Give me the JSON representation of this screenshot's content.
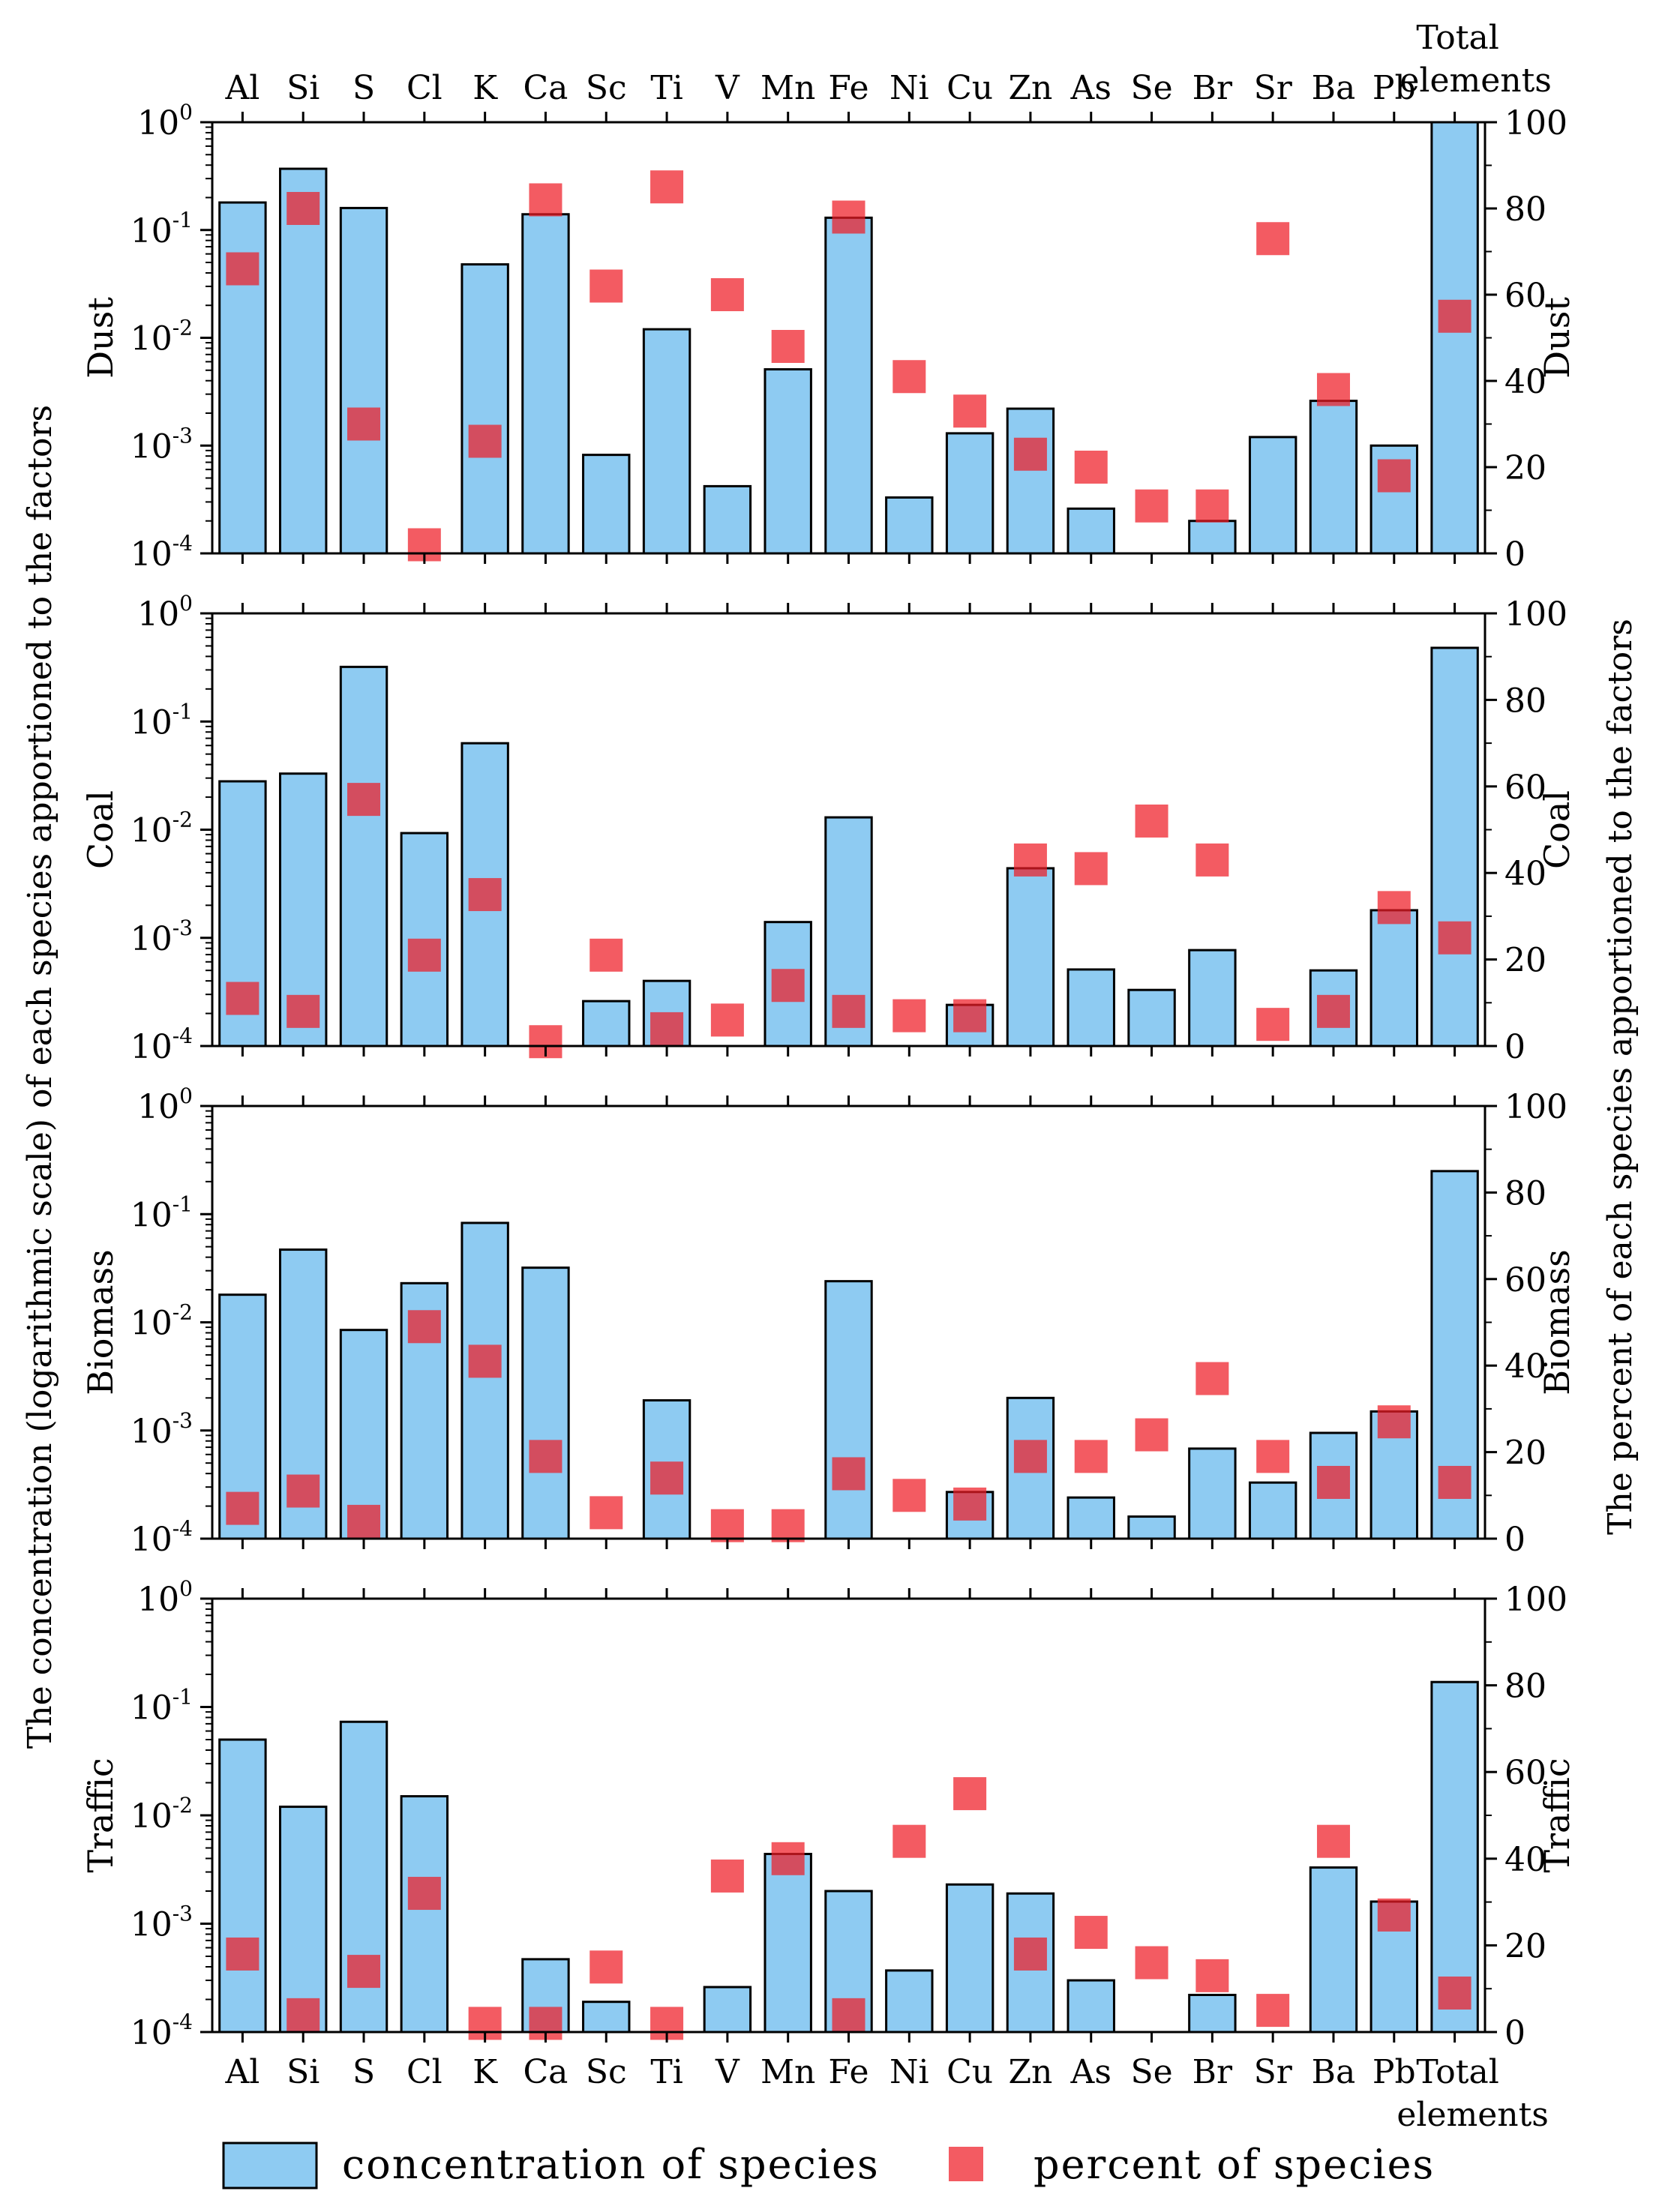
{
  "chart_data": {
    "type": "bar",
    "categories": [
      "Al",
      "Si",
      "S",
      "Cl",
      "K",
      "Ca",
      "Sc",
      "Ti",
      "V",
      "Mn",
      "Fe",
      "Ni",
      "Cu",
      "Zn",
      "As",
      "Se",
      "Br",
      "Sr",
      "Ba",
      "Pb",
      "Total elements"
    ],
    "category_labels": [
      "Al",
      "Si",
      "S",
      "Cl",
      "K",
      "Ca",
      "Sc",
      "Ti",
      "V",
      "Mn",
      "Fe",
      "Ni",
      "Cu",
      "Zn",
      "As",
      "Se",
      "Br",
      "Sr",
      "Ba",
      "Pb"
    ],
    "total_label": [
      "Total",
      "elements"
    ],
    "ylabel_left": "The concentration (logarithmic scale) of each species apportioned to the factors",
    "ylabel_right": "The percent of each species apportioned to the factors",
    "left_axis": {
      "scale": "log",
      "ylim": [
        0.0001,
        1
      ],
      "ticks": [
        {
          "base": "10",
          "exp": "0"
        },
        {
          "base": "10",
          "exp": "-1"
        },
        {
          "base": "10",
          "exp": "-2"
        },
        {
          "base": "10",
          "exp": "-3"
        },
        {
          "base": "10",
          "exp": "-4"
        }
      ]
    },
    "right_axis": {
      "scale": "linear",
      "ylim": [
        0,
        100
      ],
      "ticks": [
        "0",
        "20",
        "40",
        "60",
        "80",
        "100"
      ]
    },
    "legend": {
      "concentration": "concentration of species",
      "percent": "percent of species",
      "position": "bottom"
    },
    "colors": {
      "bar": "#8ecbf2",
      "bar_edge": "#000000",
      "marker": "#ee1c25"
    },
    "panels": [
      {
        "name": "Dust",
        "concentration": [
          0.18,
          0.37,
          0.16,
          null,
          0.048,
          0.14,
          0.00082,
          0.012,
          0.00042,
          0.0051,
          0.13,
          0.00033,
          0.0013,
          0.0022,
          0.00026,
          null,
          0.0002,
          0.0012,
          0.0026,
          0.001,
          1.1
        ],
        "percent": [
          66,
          80,
          30,
          2,
          26,
          82,
          62,
          85,
          60,
          48,
          78,
          41,
          33,
          23,
          20,
          11,
          11,
          73,
          38,
          18,
          55
        ]
      },
      {
        "name": "Coal",
        "concentration": [
          0.028,
          0.033,
          0.32,
          0.0093,
          0.063,
          null,
          0.00026,
          0.0004,
          null,
          0.0014,
          0.013,
          null,
          0.00024,
          0.0044,
          0.00051,
          0.00033,
          0.00077,
          null,
          0.0005,
          0.0018,
          0.48
        ],
        "percent": [
          11,
          8,
          57,
          21,
          35,
          1,
          21,
          4,
          6,
          14,
          8,
          7,
          7,
          43,
          41,
          52,
          43,
          5,
          8,
          32,
          25
        ]
      },
      {
        "name": "Biomass",
        "concentration": [
          0.018,
          0.047,
          0.0085,
          0.023,
          0.083,
          0.032,
          null,
          0.0019,
          null,
          null,
          0.024,
          null,
          0.00027,
          0.002,
          0.00024,
          0.00016,
          0.00068,
          0.00033,
          0.00095,
          0.0015,
          0.25
        ],
        "percent": [
          7,
          11,
          4,
          49,
          41,
          19,
          6,
          14,
          3,
          3,
          15,
          10,
          8,
          19,
          19,
          24,
          37,
          19,
          13,
          27,
          13
        ]
      },
      {
        "name": "Traffic",
        "concentration": [
          0.05,
          0.012,
          0.073,
          0.015,
          null,
          0.00047,
          0.00019,
          null,
          0.00026,
          0.0044,
          0.002,
          0.00037,
          0.0023,
          0.0019,
          0.0003,
          null,
          0.00022,
          null,
          0.0033,
          0.0016,
          0.17
        ],
        "percent": [
          18,
          4,
          14,
          32,
          2,
          2,
          15,
          2,
          36,
          40,
          4,
          44,
          55,
          18,
          23,
          16,
          13,
          5,
          44,
          27,
          9
        ]
      }
    ]
  }
}
